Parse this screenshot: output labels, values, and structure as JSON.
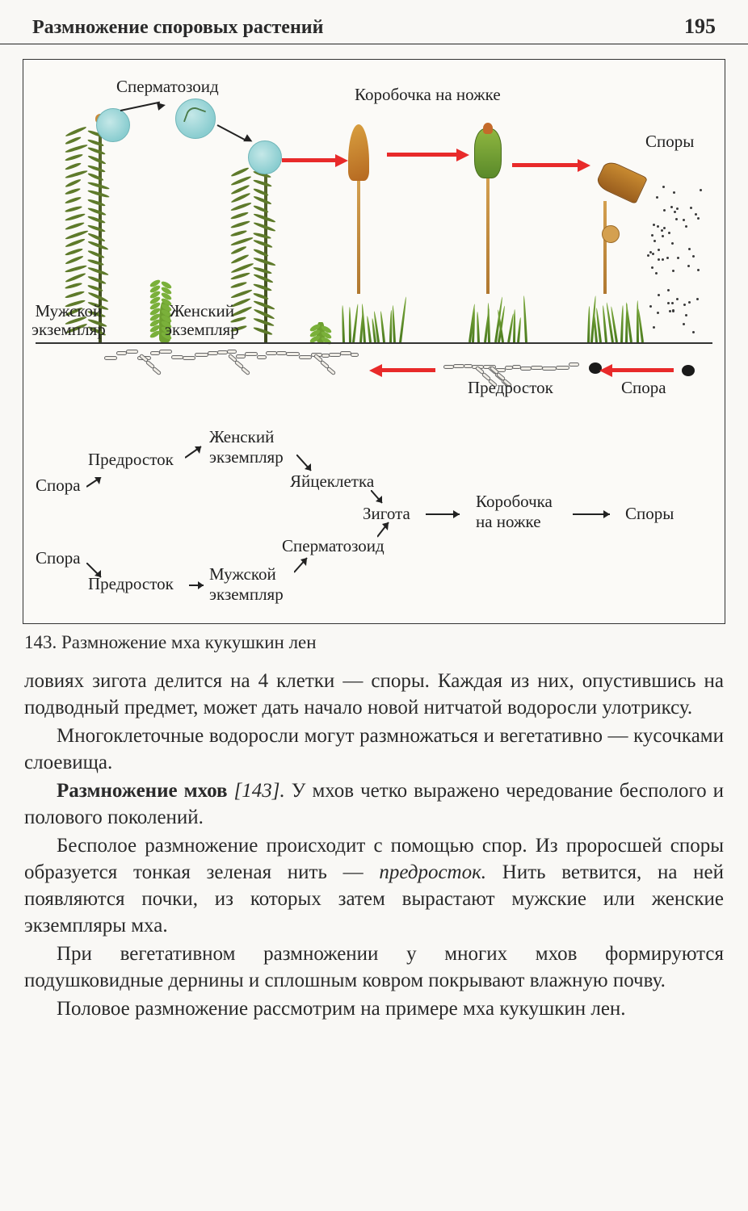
{
  "header": {
    "title": "Размножение споровых растений",
    "page": "195"
  },
  "figure": {
    "labels": {
      "spermatozoid_top": "Сперматозоид",
      "capsule_on_stalk": "Коробочка на ножке",
      "spores_top": "Споры",
      "male_specimen": "Мужской\nэкземпляр",
      "female_specimen": "Женский\nэкземпляр",
      "protonema_img": "Предросток",
      "spore_img": "Спора"
    },
    "schematic": {
      "spora1": "Спора",
      "spora2": "Спора",
      "predrostok1": "Предросток",
      "predrostok2": "Предросток",
      "female_ex": "Женский\nэкземпляр",
      "male_ex": "Мужской\nэкземпляр",
      "egg": "Яйцеклетка",
      "sperm": "Сперматозоид",
      "zygote": "Зигота",
      "capsule": "Коробочка\nна ножке",
      "spores": "Споры"
    },
    "colors": {
      "arrow_red": "#e82a2a",
      "arrow_black": "#222222",
      "moss_green": "#5e7a2a",
      "capsule_orange": "#c88a30",
      "capsule_green": "#7aa83a",
      "sperm_blue": "#8acdd0"
    }
  },
  "caption": "143. Размножение мха кукушкин лен",
  "paragraphs": {
    "p1": "ловиях зигота делится на 4 клетки — споры. Каждая из них, опустившись на подводный предмет, может дать начало новой нитчатой водоросли улотриксу.",
    "p2": "Многоклеточные водоросли могут размножаться и вегетативно — кусочками слоевища.",
    "p3a": "Размножение мхов ",
    "p3b": "[143].",
    "p3c": " У мхов четко выражено чередование бесполого и полового поколений.",
    "p4a": "Бесполое размножение происходит с помощью спор. Из проросшей споры образуется тонкая зеленая нить — ",
    "p4b": "предросток.",
    "p4c": " Нить ветвится, на ней появляются почки, из которых затем вырастают мужские или женские экземпляры мха.",
    "p5": "При вегетативном размножении у многих мхов формируются подушковидные дернины и сплошным ковром покрывают влажную почву.",
    "p6": "Половое размножение рассмотрим на примере мха кукушкин лен."
  }
}
